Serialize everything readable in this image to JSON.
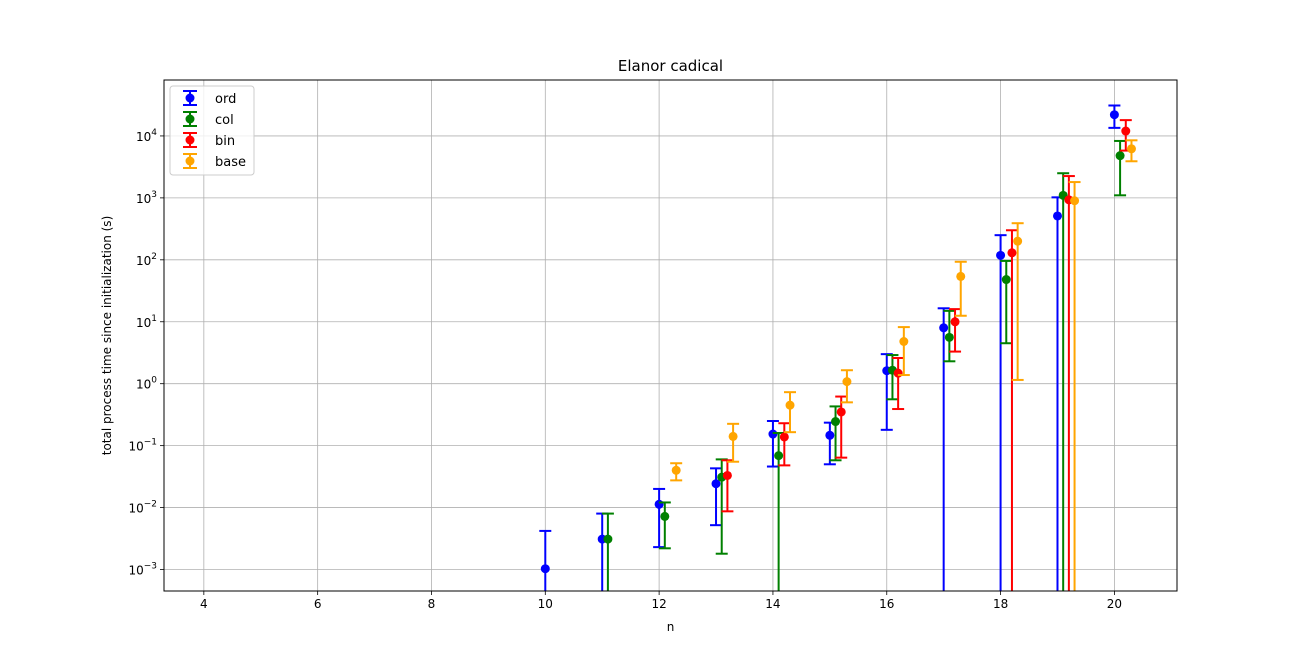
{
  "chart_data": {
    "type": "scatter",
    "title": "Elanor cadical",
    "xlabel": "n",
    "ylabel": "total process time since initialization (s)",
    "xlim": [
      3.3,
      21.1
    ],
    "ylim": [
      0.00045,
      80000
    ],
    "yscale": "log",
    "xticks": [
      4,
      6,
      8,
      10,
      12,
      14,
      16,
      18,
      20
    ],
    "xtick_labels": [
      "4",
      "6",
      "8",
      "10",
      "12",
      "14",
      "16",
      "18",
      "20"
    ],
    "yticks": [
      0.001,
      0.01,
      0.1,
      1,
      10,
      100,
      1000,
      10000
    ],
    "ytick_labels": [
      {
        "base": "10",
        "exp": "−3"
      },
      {
        "base": "10",
        "exp": "−2"
      },
      {
        "base": "10",
        "exp": "−1"
      },
      {
        "base": "10",
        "exp": "0"
      },
      {
        "base": "10",
        "exp": "1"
      },
      {
        "base": "10",
        "exp": "2"
      },
      {
        "base": "10",
        "exp": "3"
      },
      {
        "base": "10",
        "exp": "4"
      }
    ],
    "grid": true,
    "legend_position": "top-left",
    "series": [
      {
        "name": "ord",
        "color": "#0000ff",
        "offset": 0.0,
        "points": [
          {
            "x": 10,
            "y": 0.00103,
            "lo": 1e-05,
            "hi": 0.0042
          },
          {
            "x": 11,
            "y": 0.0031,
            "lo": 1e-05,
            "hi": 0.008
          },
          {
            "x": 12,
            "y": 0.0113,
            "lo": 0.0023,
            "hi": 0.02
          },
          {
            "x": 13,
            "y": 0.0243,
            "lo": 0.0052,
            "hi": 0.043
          },
          {
            "x": 14,
            "y": 0.154,
            "lo": 0.046,
            "hi": 0.25
          },
          {
            "x": 15,
            "y": 0.147,
            "lo": 0.05,
            "hi": 0.235
          },
          {
            "x": 16,
            "y": 1.62,
            "lo": 0.18,
            "hi": 3.0
          },
          {
            "x": 17,
            "y": 8.0,
            "lo": 0.0001,
            "hi": 16.5
          },
          {
            "x": 18,
            "y": 118,
            "lo": 0.0001,
            "hi": 250
          },
          {
            "x": 19,
            "y": 510,
            "lo": 0.0001,
            "hi": 1020
          },
          {
            "x": 20,
            "y": 22000,
            "lo": 13500,
            "hi": 31000
          }
        ]
      },
      {
        "name": "col",
        "color": "#008000",
        "offset": 0.1,
        "points": [
          {
            "x": 11,
            "y": 0.0031,
            "lo": 1e-05,
            "hi": 0.008
          },
          {
            "x": 12,
            "y": 0.0072,
            "lo": 0.0022,
            "hi": 0.0121
          },
          {
            "x": 13,
            "y": 0.031,
            "lo": 0.0018,
            "hi": 0.06
          },
          {
            "x": 14,
            "y": 0.069,
            "lo": 1e-05,
            "hi": 0.16
          },
          {
            "x": 15,
            "y": 0.245,
            "lo": 0.058,
            "hi": 0.43
          },
          {
            "x": 16,
            "y": 1.65,
            "lo": 0.56,
            "hi": 2.9
          },
          {
            "x": 17,
            "y": 5.6,
            "lo": 2.3,
            "hi": 15
          },
          {
            "x": 18,
            "y": 48,
            "lo": 4.5,
            "hi": 96
          },
          {
            "x": 19,
            "y": 1100,
            "lo": 0.0001,
            "hi": 2500
          },
          {
            "x": 20,
            "y": 4800,
            "lo": 1100,
            "hi": 8300
          }
        ]
      },
      {
        "name": "bin",
        "color": "#ff0000",
        "offset": 0.2,
        "points": [
          {
            "x": 13,
            "y": 0.033,
            "lo": 0.0087,
            "hi": 0.058
          },
          {
            "x": 14,
            "y": 0.138,
            "lo": 0.048,
            "hi": 0.23
          },
          {
            "x": 15,
            "y": 0.35,
            "lo": 0.064,
            "hi": 0.62
          },
          {
            "x": 16,
            "y": 1.48,
            "lo": 0.39,
            "hi": 2.6
          },
          {
            "x": 17,
            "y": 10.0,
            "lo": 3.3,
            "hi": 16
          },
          {
            "x": 18,
            "y": 130,
            "lo": 0.0001,
            "hi": 300
          },
          {
            "x": 19,
            "y": 930,
            "lo": 0.0001,
            "hi": 2250
          },
          {
            "x": 20,
            "y": 12000,
            "lo": 5800,
            "hi": 18000
          }
        ]
      },
      {
        "name": "base",
        "color": "#ffa500",
        "offset": 0.3,
        "points": [
          {
            "x": 12,
            "y": 0.04,
            "lo": 0.0275,
            "hi": 0.052
          },
          {
            "x": 13,
            "y": 0.141,
            "lo": 0.055,
            "hi": 0.225
          },
          {
            "x": 14,
            "y": 0.45,
            "lo": 0.165,
            "hi": 0.73
          },
          {
            "x": 15,
            "y": 1.08,
            "lo": 0.5,
            "hi": 1.65
          },
          {
            "x": 16,
            "y": 4.8,
            "lo": 1.38,
            "hi": 8.2
          },
          {
            "x": 17,
            "y": 54,
            "lo": 12.5,
            "hi": 93
          },
          {
            "x": 18,
            "y": 200,
            "lo": 1.15,
            "hi": 390
          },
          {
            "x": 19,
            "y": 900,
            "lo": 0.0001,
            "hi": 1800
          },
          {
            "x": 20,
            "y": 6200,
            "lo": 3900,
            "hi": 8500
          }
        ]
      }
    ]
  }
}
